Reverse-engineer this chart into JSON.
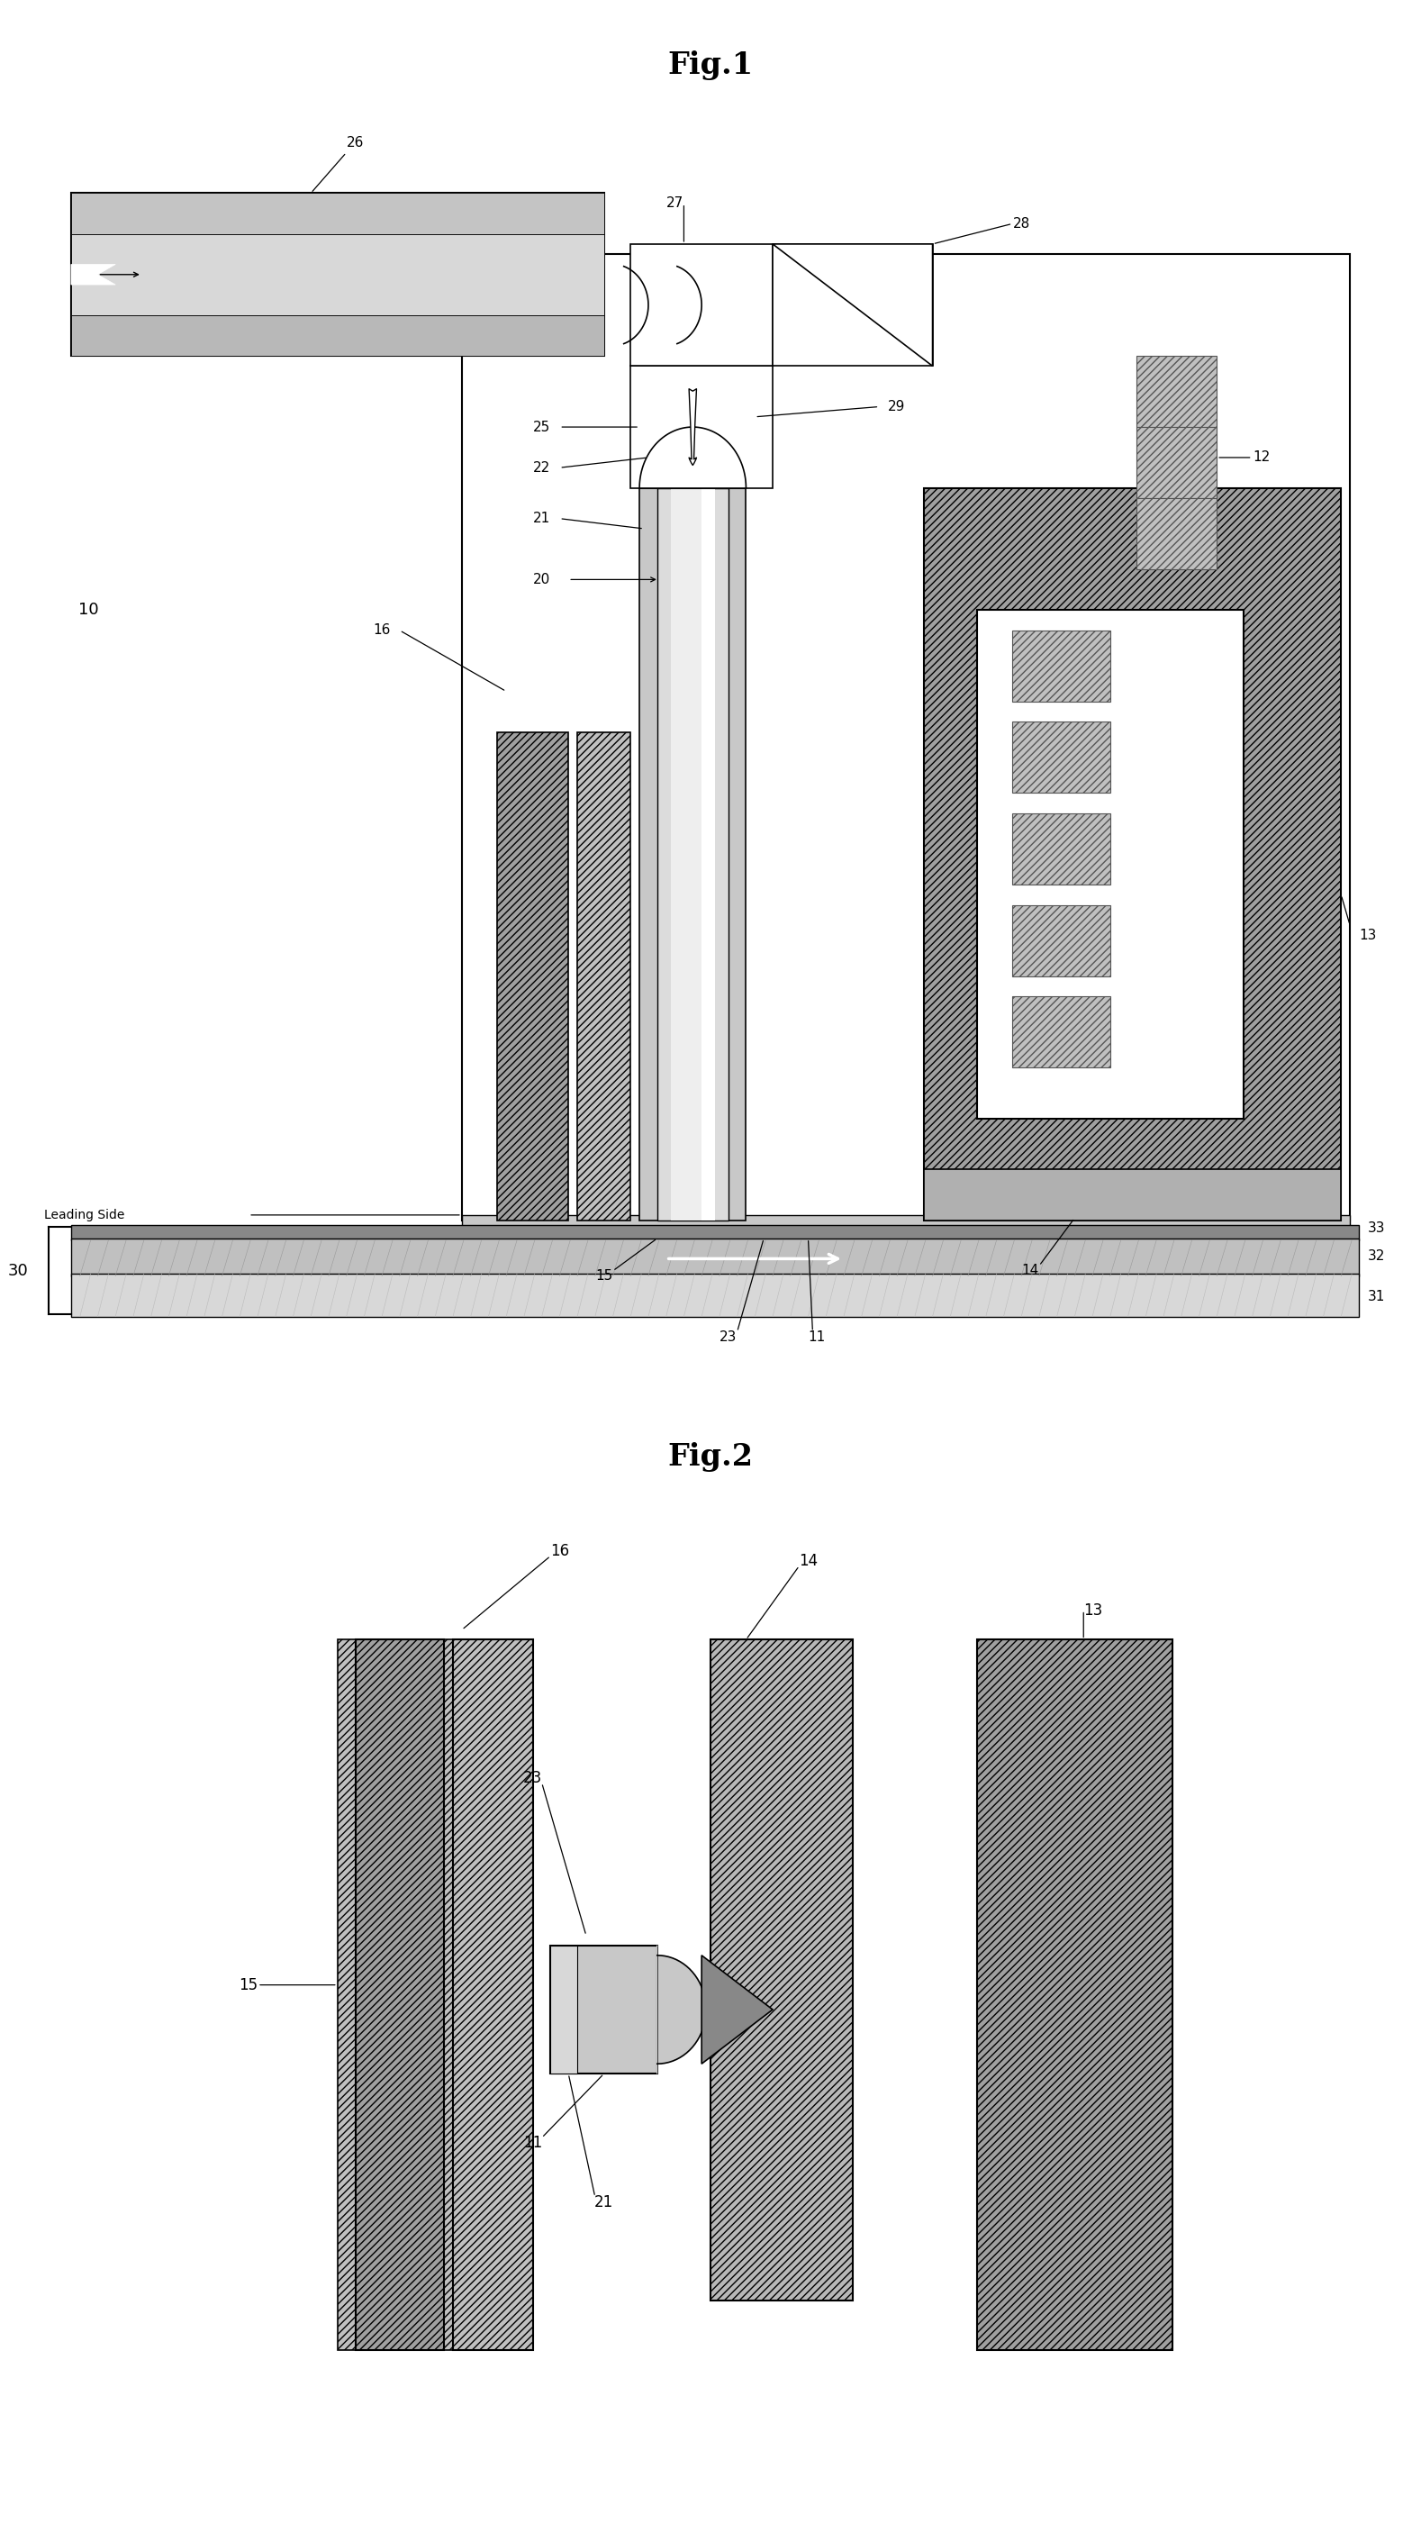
{
  "fig1_title": "Fig.1",
  "fig2_title": "Fig.2",
  "bg": "#ffffff",
  "c_dark_hatch": "#888888",
  "c_med_hatch": "#aaaaaa",
  "c_light": "#cccccc",
  "c_vlight": "#e0e0e0",
  "c_layer33": "#888888",
  "c_layer32": "#bbbbbb",
  "c_layer31": "#d0d0d0",
  "c_laser_top": "#c8c8c8",
  "c_laser_mid": "#b0b0b0",
  "c_laser_bot": "#d8d8d8"
}
